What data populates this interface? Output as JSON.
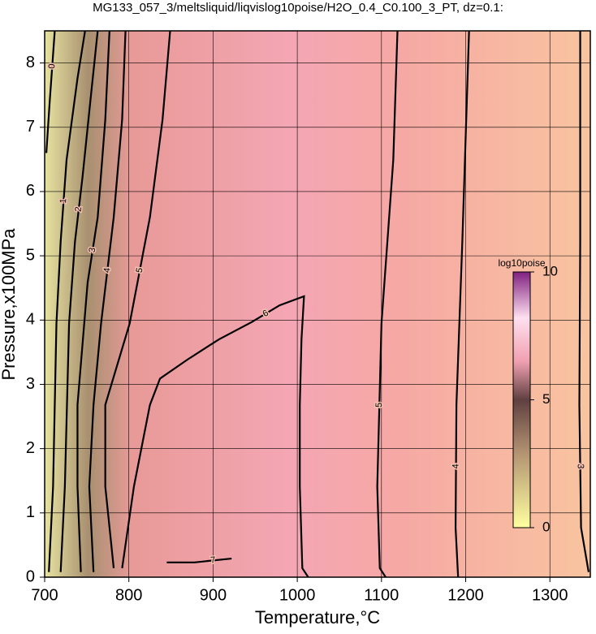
{
  "chart_data": {
    "type": "contour",
    "title": "MG133_057_3/meltsliquid/liqvislog10poise/H2O_0.4_C0.100_3_PT, dz=0.1:",
    "xlabel": "Temperature,°C",
    "ylabel": "Pressure,x100MPa",
    "xlim": [
      700,
      1348
    ],
    "ylim": [
      0,
      8.5
    ],
    "xticks": [
      700,
      800,
      900,
      1000,
      1100,
      1200,
      1300
    ],
    "yticks": [
      0,
      1,
      2,
      3,
      4,
      5,
      6,
      7,
      8
    ],
    "grid": true,
    "contours": [
      {
        "level": 0,
        "x": [
          702,
          706,
          712
        ],
        "y": [
          6.6,
          7.4,
          8.5
        ]
      },
      {
        "level": 1,
        "x": [
          705,
          710,
          714,
          719,
          726,
          739,
          748
        ],
        "y": [
          0.08,
          1.41,
          3.95,
          5.22,
          6.49,
          7.76,
          8.5
        ]
      },
      {
        "level": 2,
        "x": [
          719,
          724,
          729,
          736,
          745,
          755,
          763
        ],
        "y": [
          0.08,
          1.41,
          3.95,
          5.22,
          6.23,
          7.5,
          8.5
        ]
      },
      {
        "level": 3,
        "x": [
          743,
          739,
          739,
          751,
          763,
          772,
          777
        ],
        "y": [
          0.08,
          1.41,
          2.68,
          4.58,
          5.6,
          7.12,
          8.5
        ]
      },
      {
        "level": 4,
        "x": [
          758,
          753,
          758,
          767,
          782,
          792,
          796
        ],
        "y": [
          0.08,
          1.41,
          2.68,
          3.95,
          5.6,
          7.12,
          8.5
        ]
      },
      {
        "level": 5,
        "x": [
          782,
          772,
          772,
          801,
          825,
          840,
          849
        ],
        "y": [
          0.14,
          1.41,
          2.68,
          3.95,
          5.6,
          7.12,
          8.5
        ]
      },
      {
        "level": 6,
        "x": [
          792,
          806,
          825,
          837,
          869,
          907,
          946,
          979,
          1008,
          1005,
          1003,
          1003,
          1006,
          1013
        ],
        "y": [
          0.14,
          1.41,
          2.68,
          3.09,
          3.38,
          3.7,
          3.97,
          4.23,
          4.37,
          3.7,
          2.68,
          1.41,
          0.14,
          0
        ]
      },
      {
        "level": 7,
        "x": [
          845,
          878,
          922
        ],
        "y": [
          0.23,
          0.23,
          0.29
        ]
      },
      {
        "level": 5,
        "x": [
          1119,
          1114,
          1100,
          1095,
          1098,
          1105
        ],
        "y": [
          8.5,
          6.49,
          3.95,
          1.41,
          0.14,
          0
        ]
      },
      {
        "level": 4,
        "x": [
          1204,
          1196,
          1189,
          1188,
          1191
        ],
        "y": [
          8.5,
          5.22,
          2.68,
          0.77,
          0
        ]
      },
      {
        "level": 3,
        "x": [
          1336,
          1336,
          1335,
          1337,
          1346
        ],
        "y": [
          8.5,
          5.22,
          2.68,
          0.77,
          0.08
        ]
      }
    ],
    "colorbar": {
      "title": "log10poise",
      "range": [
        0,
        10
      ],
      "ticks": [
        0,
        5,
        10
      ]
    }
  }
}
